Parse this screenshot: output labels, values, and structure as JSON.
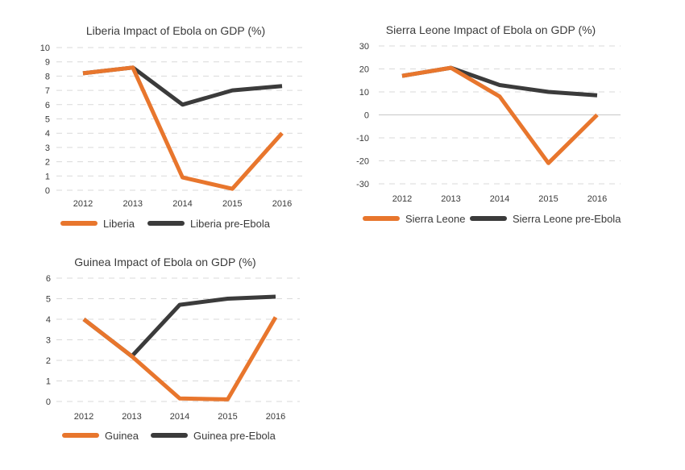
{
  "colors": {
    "impact": "#E8762D",
    "baseline": "#3B3B3B",
    "grid": "#d9d9d9",
    "zero": "#c8c8c8"
  },
  "chart_data": [
    {
      "type": "line",
      "title": "Liberia Impact of Ebola on GDP (%)",
      "x": [
        "2012",
        "2013",
        "2014",
        "2015",
        "2016"
      ],
      "ylim": [
        0,
        10
      ],
      "yticks": [
        0,
        1,
        2,
        3,
        4,
        5,
        6,
        7,
        8,
        9,
        10
      ],
      "grid": true,
      "legend": "bottom-left",
      "series": [
        {
          "name": "Liberia",
          "values": [
            8.2,
            8.6,
            0.9,
            0.1,
            4.0
          ]
        },
        {
          "name": "Liberia pre-Ebola",
          "values": [
            8.2,
            8.6,
            6.0,
            7.0,
            7.3
          ]
        }
      ]
    },
    {
      "type": "line",
      "title": "Sierra Leone Impact of Ebola on  GDP (%)",
      "x": [
        "2012",
        "2013",
        "2014",
        "2015",
        "2016"
      ],
      "ylim": [
        -30,
        30
      ],
      "yticks": [
        -30,
        -20,
        -10,
        0,
        10,
        20,
        30
      ],
      "grid": true,
      "legend": "bottom-left",
      "series": [
        {
          "name": "Sierra Leone",
          "values": [
            17,
            20.5,
            8,
            -21,
            0
          ]
        },
        {
          "name": "Sierra Leone pre-Ebola",
          "values": [
            17,
            20.5,
            13,
            10,
            8.5
          ]
        }
      ]
    },
    {
      "type": "line",
      "title": "Guinea Impact of Ebola on GDP  (%)",
      "x": [
        "2012",
        "2013",
        "2014",
        "2015",
        "2016"
      ],
      "ylim": [
        0,
        6
      ],
      "yticks": [
        0,
        1,
        2,
        3,
        4,
        5,
        6
      ],
      "grid": true,
      "legend": "bottom-left",
      "series": [
        {
          "name": "Guinea",
          "values": [
            4.0,
            2.2,
            0.15,
            0.1,
            4.1
          ]
        },
        {
          "name": "Guinea pre-Ebola",
          "values": [
            4.0,
            2.2,
            4.7,
            5.0,
            5.1
          ]
        }
      ]
    }
  ]
}
